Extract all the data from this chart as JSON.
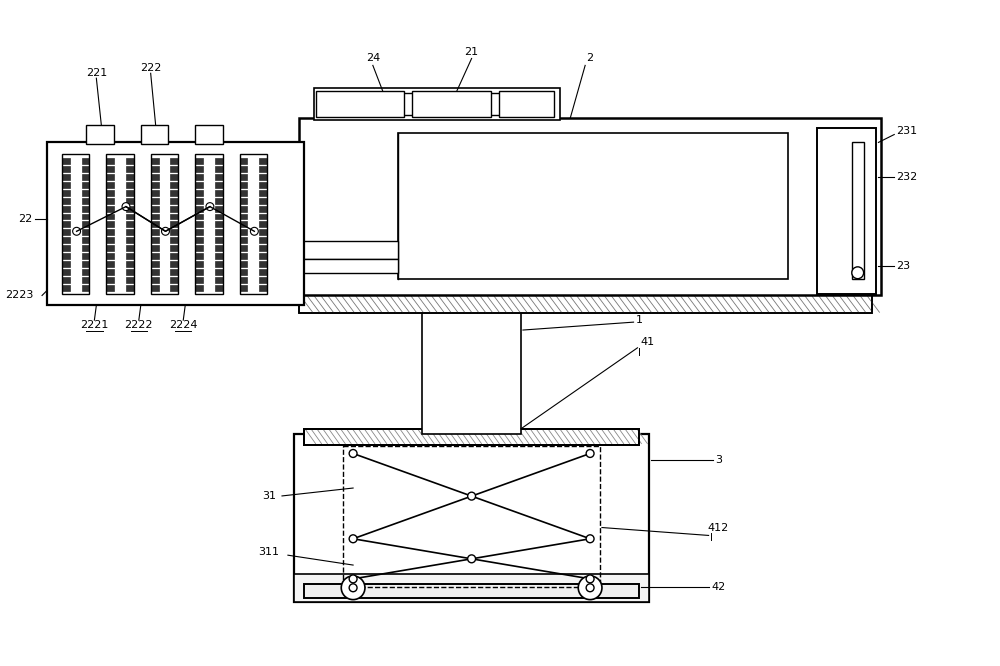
{
  "bg_color": "#ffffff",
  "line_color": "#000000",
  "fig_width": 10.0,
  "fig_height": 6.66,
  "dpi": 100,
  "lw_main": 1.4,
  "lw_thin": 0.8,
  "fs": 8.0
}
